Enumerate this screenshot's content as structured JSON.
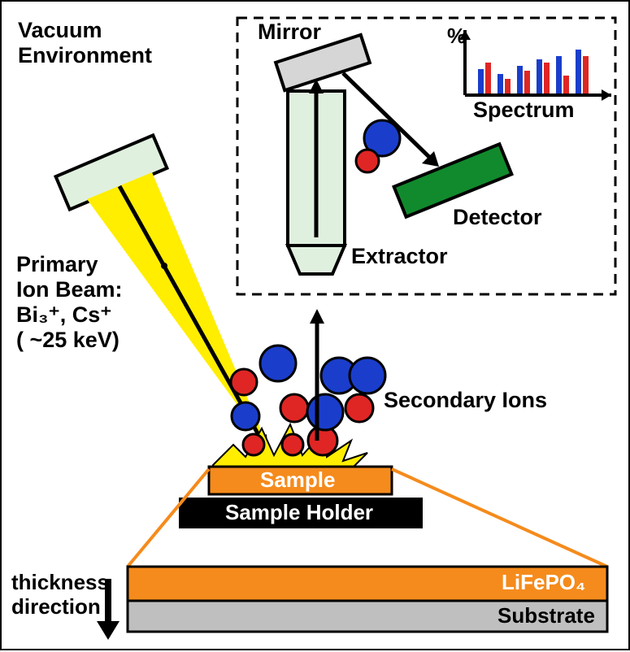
{
  "labels": {
    "vacuum_env": "Vacuum\nEnvironment",
    "mirror": "Mirror",
    "spectrum": "Spectrum",
    "percent": "%",
    "detector": "Detector",
    "extractor": "Extractor",
    "primary_beam": "Primary\nIon Beam:\nBi₃⁺, Cs⁺\n( ~25 keV)",
    "secondary_ions": "Secondary Ions",
    "sample": "Sample",
    "sample_holder": "Sample Holder",
    "lifepo4": "LiFePO₄",
    "substrate": "Substrate",
    "thickness_dir": "thickness\ndirection"
  },
  "colors": {
    "mirror_fill": "#d6d6d6",
    "extractor_fill": "#e0f0df",
    "detector_fill": "#118a2d",
    "ion_gun_fill": "#e0f0df",
    "beam_yellow": "#ffee00",
    "sample_orange": "#f58b1c",
    "holder_black": "#000000",
    "substrate_gray": "#bfbfbf",
    "ion_red": "#df2624",
    "ion_blue": "#1a3ecb",
    "spectrum_bar_blue": "#1a3ecb",
    "spectrum_bar_red": "#df2624",
    "callout_orange": "#f58b1c"
  },
  "spectrum": {
    "bars": [
      {
        "h_blue": 30,
        "h_red": 38
      },
      {
        "h_blue": 24,
        "h_red": 18
      },
      {
        "h_blue": 34,
        "h_red": 28
      },
      {
        "h_blue": 42,
        "h_red": 38
      },
      {
        "h_blue": 46,
        "h_red": 22
      },
      {
        "h_blue": 54,
        "h_red": 46
      }
    ]
  },
  "fonts": {
    "large": 27,
    "medium": 27,
    "sample_label": 26
  }
}
